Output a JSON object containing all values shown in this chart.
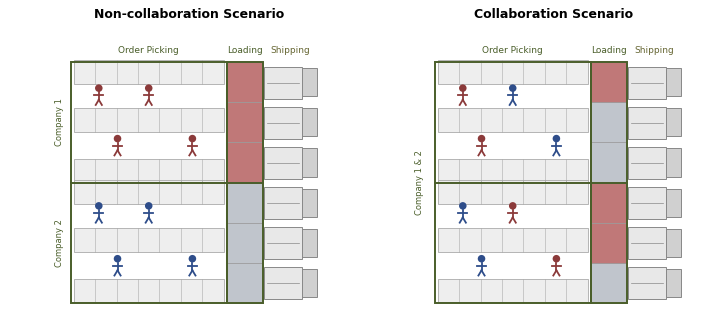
{
  "title_left": "Non-collaboration Scenario",
  "title_right": "Collaboration Scenario",
  "label_order_picking": "Order Picking",
  "label_loading": "Loading",
  "label_shipping": "Shipping",
  "label_company1": "Company 1",
  "label_company2": "Company 2",
  "label_company12": "Company 1 & 2",
  "color_dark_green": "#4a5e2a",
  "color_red_fill": "#c07878",
  "color_gray_fill": "#c0c5cc",
  "color_shelf_fill": "#eeeeee",
  "color_shelf_border": "#aaaaaa",
  "color_person_red": "#8b3a3a",
  "color_person_blue": "#2e4d8a",
  "color_truck_body": "#e8e8e8",
  "color_truck_border": "#888888",
  "color_truck_cab": "#d0d0d0",
  "bg_color": "#ffffff",
  "non_collab_top_load": [
    "red",
    "red",
    "red"
  ],
  "non_collab_bot_load": [
    "gray",
    "gray",
    "gray"
  ],
  "collab_top_load": [
    "gray",
    "gray",
    "red"
  ],
  "collab_bot_load": [
    "gray",
    "red",
    "red"
  ]
}
